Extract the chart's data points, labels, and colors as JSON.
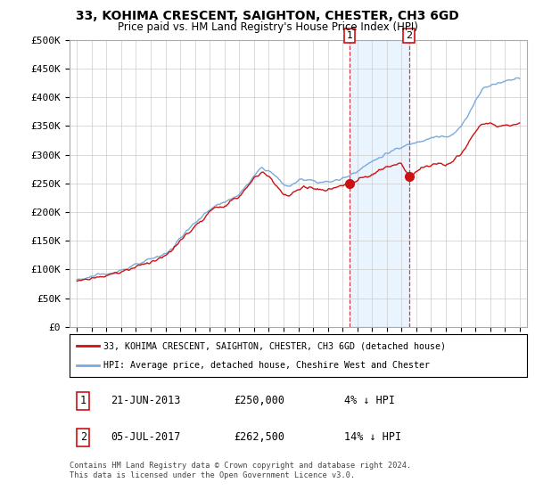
{
  "title": "33, KOHIMA CRESCENT, SAIGHTON, CHESTER, CH3 6GD",
  "subtitle": "Price paid vs. HM Land Registry's House Price Index (HPI)",
  "ylabel_ticks": [
    "£0",
    "£50K",
    "£100K",
    "£150K",
    "£200K",
    "£250K",
    "£300K",
    "£350K",
    "£400K",
    "£450K",
    "£500K"
  ],
  "ytick_values": [
    0,
    50000,
    100000,
    150000,
    200000,
    250000,
    300000,
    350000,
    400000,
    450000,
    500000
  ],
  "xlim_start": 1994.5,
  "xlim_end": 2025.5,
  "ylim": [
    0,
    500000
  ],
  "hpi_color": "#7aaadd",
  "price_color": "#cc1111",
  "transaction1": {
    "date": "21-JUN-2013",
    "price": 250000,
    "pct": "4%",
    "direction": "↓",
    "label": "1"
  },
  "transaction2": {
    "date": "05-JUL-2017",
    "price": 262500,
    "pct": "14%",
    "direction": "↓",
    "label": "2"
  },
  "transaction1_x": 2013.47,
  "transaction2_x": 2017.51,
  "legend_line1": "33, KOHIMA CRESCENT, SAIGHTON, CHESTER, CH3 6GD (detached house)",
  "legend_line2": "HPI: Average price, detached house, Cheshire West and Chester",
  "footer1": "Contains HM Land Registry data © Crown copyright and database right 2024.",
  "footer2": "This data is licensed under the Open Government Licence v3.0.",
  "background_color": "#ffffff",
  "plot_bg_color": "#ffffff",
  "grid_color": "#cccccc",
  "shade_color": "#ddeeff"
}
